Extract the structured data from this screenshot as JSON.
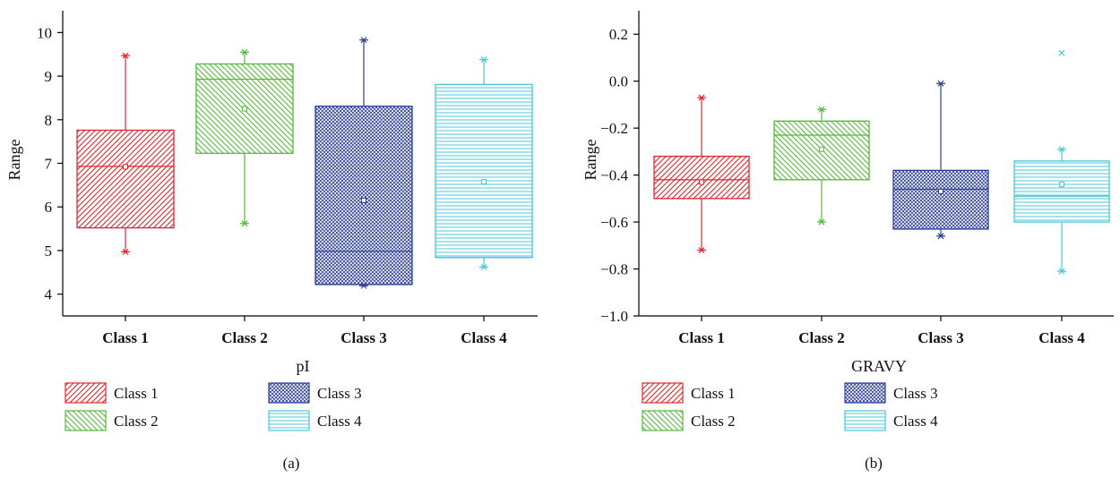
{
  "panels": [
    {
      "panel_label": "(a)",
      "legend": [
        "Class 1",
        "Class 2",
        "Class 3",
        "Class 4"
      ]
    },
    {
      "panel_label": "(b)",
      "legend": [
        "Class 1",
        "Class 2",
        "Class 3",
        "Class 4"
      ]
    }
  ],
  "colors": {
    "Class 1": "#e0262b",
    "Class 2": "#55b83a",
    "Class 3": "#2b3e9e",
    "Class 4": "#4cc6d8"
  },
  "patterns": {
    "Class 1": "diagonal-up",
    "Class 2": "diagonal-down",
    "Class 3": "crosshatch",
    "Class 4": "horizontal"
  },
  "chart_data": [
    {
      "type": "box",
      "categories": [
        "Class 1",
        "Class 2",
        "Class 3",
        "Class 4"
      ],
      "xlabel": "pI",
      "ylabel": "Range",
      "ylim": [
        3.5,
        10.5
      ],
      "yticks": [
        "4",
        "5",
        "6",
        "7",
        "8",
        "9",
        "10"
      ],
      "legend_position": "bottom",
      "boxes": [
        {
          "name": "Class 1",
          "min": 4.97,
          "q1": 5.52,
          "median": 6.93,
          "q3": 7.76,
          "max": 9.47,
          "mean": 6.92
        },
        {
          "name": "Class 2",
          "min": 5.62,
          "q1": 7.23,
          "median": 8.93,
          "q3": 9.28,
          "max": 9.55,
          "mean": 8.25
        },
        {
          "name": "Class 3",
          "min": 4.19,
          "q1": 4.22,
          "median": 4.98,
          "q3": 8.31,
          "max": 9.83,
          "mean": 6.15
        },
        {
          "name": "Class 4",
          "min": 4.62,
          "q1": 4.84,
          "median": 4.84,
          "q3": 8.81,
          "max": 9.38,
          "mean": 6.58
        }
      ]
    },
    {
      "type": "box",
      "categories": [
        "Class 1",
        "Class 2",
        "Class 3",
        "Class 4"
      ],
      "xlabel": "GRAVY",
      "ylabel": "Range",
      "ylim": [
        -1.0,
        0.3
      ],
      "yticks": [
        "−1.0",
        "−0.8",
        "−0.6",
        "−0.4",
        "−0.2",
        "0.0",
        "0.2"
      ],
      "legend_position": "bottom",
      "boxes": [
        {
          "name": "Class 1",
          "min": -0.72,
          "q1": -0.5,
          "median": -0.42,
          "q3": -0.32,
          "max": -0.07,
          "mean": -0.43
        },
        {
          "name": "Class 2",
          "min": -0.6,
          "q1": -0.42,
          "median": -0.23,
          "q3": -0.17,
          "max": -0.12,
          "mean": -0.29
        },
        {
          "name": "Class 3",
          "min": -0.66,
          "q1": -0.63,
          "median": -0.46,
          "q3": -0.38,
          "max": -0.01,
          "mean": -0.47
        },
        {
          "name": "Class 4",
          "min": -0.81,
          "q1": -0.6,
          "median": -0.49,
          "q3": -0.34,
          "max": -0.29,
          "mean": -0.44,
          "outliers": [
            0.12
          ]
        }
      ]
    }
  ]
}
